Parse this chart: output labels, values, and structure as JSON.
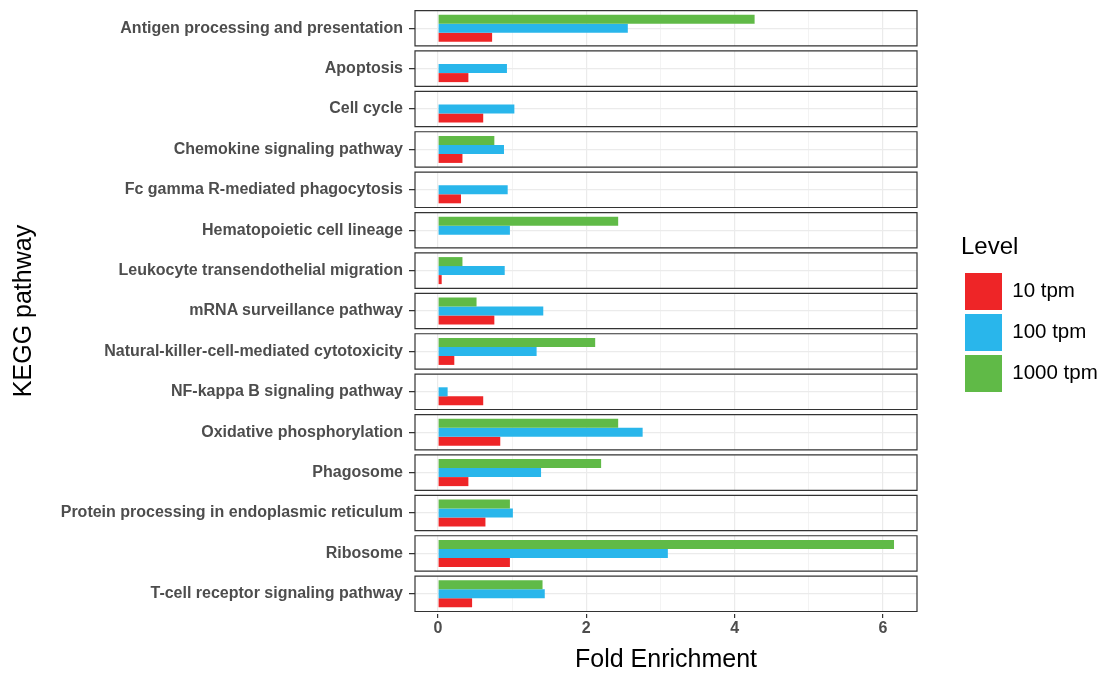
{
  "chart_data": {
    "type": "bar",
    "orientation": "horizontal",
    "xlabel": "Fold Enrichment",
    "ylabel": "KEGG pathway",
    "legend_title": "Level",
    "categories": [
      "Antigen processing and presentation",
      "Apoptosis",
      "Cell cycle",
      "Chemokine signaling pathway",
      "Fc gamma R-mediated phagocytosis",
      "Hematopoietic cell lineage",
      "Leukocyte transendothelial migration",
      "mRNA surveillance pathway",
      "Natural-killer-cell-mediated cytotoxicity",
      "NF-kappa B signaling pathway",
      "Oxidative phosphorylation",
      "Phagosome",
      "Protein processing in endoplasmic reticulum",
      "Ribosome",
      "T-cell receptor signaling pathway"
    ],
    "series": [
      {
        "name": "10 tpm",
        "color": "#ee2527",
        "values": [
          0.73,
          0.41,
          0.61,
          0.33,
          0.31,
          null,
          0.05,
          0.76,
          0.22,
          0.61,
          0.84,
          0.41,
          0.64,
          0.97,
          0.46
        ]
      },
      {
        "name": "100 tpm",
        "color": "#29b6eb",
        "values": [
          2.56,
          0.93,
          1.03,
          0.89,
          0.94,
          0.97,
          0.9,
          1.42,
          1.33,
          0.13,
          2.76,
          1.39,
          1.01,
          3.1,
          1.44
        ]
      },
      {
        "name": "1000 tpm",
        "color": "#60ba47",
        "values": [
          4.27,
          null,
          null,
          0.76,
          null,
          2.43,
          0.33,
          0.52,
          2.12,
          null,
          2.43,
          2.2,
          0.97,
          6.15,
          1.41
        ]
      }
    ],
    "xlim": [
      -0.31,
      6.46
    ],
    "xticks": [
      0,
      {
        "value": 1,
        "label": null
      },
      2,
      {
        "value": 3,
        "label": null
      },
      4,
      {
        "value": 5,
        "label": null
      },
      6
    ],
    "grid": true,
    "legend": "right"
  }
}
